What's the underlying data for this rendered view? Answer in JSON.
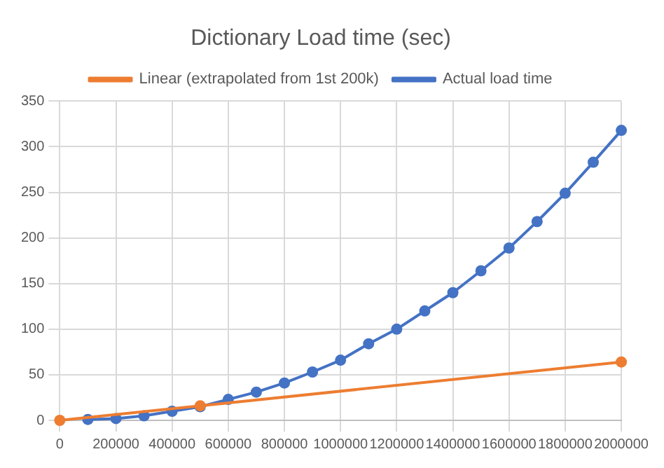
{
  "chart_data": {
    "type": "line",
    "title": "Dictionary Load time (sec)",
    "legend": "top",
    "grid": true,
    "marker": "circle",
    "xlim": [
      0,
      2000000
    ],
    "xticks": [
      0,
      200000,
      400000,
      600000,
      800000,
      1000000,
      1200000,
      1400000,
      1600000,
      1800000,
      2000000
    ],
    "ylim": [
      0,
      350
    ],
    "yticks": [
      0,
      50,
      100,
      150,
      200,
      250,
      300,
      350
    ],
    "series": [
      {
        "name": "Actual load time",
        "color": "#4472c4",
        "x": [
          100000,
          200000,
          300000,
          400000,
          500000,
          600000,
          700000,
          800000,
          900000,
          1000000,
          1100000,
          1200000,
          1300000,
          1400000,
          1500000,
          1600000,
          1700000,
          1800000,
          1900000,
          2000000
        ],
        "values": [
          1,
          2,
          5,
          10,
          15,
          23,
          31,
          41,
          53,
          66,
          84,
          100,
          120,
          140,
          164,
          189,
          218,
          249,
          283,
          318
        ]
      },
      {
        "name": "Linear (extrapolated from 1st 200k)",
        "color": "#ed7d31",
        "x": [
          0,
          500000,
          2000000
        ],
        "values": [
          0,
          16,
          64
        ]
      }
    ]
  }
}
